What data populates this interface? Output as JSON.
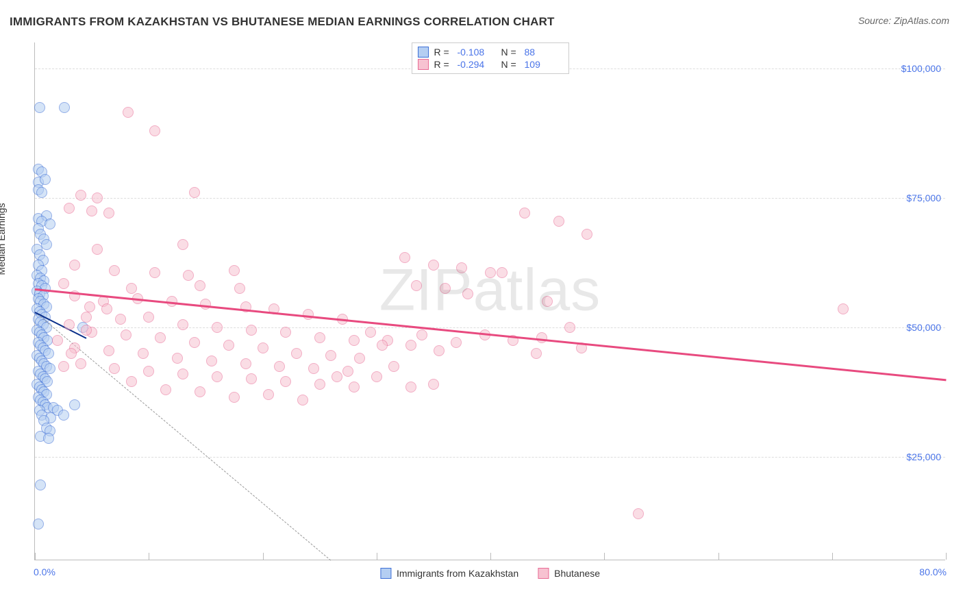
{
  "title": "IMMIGRANTS FROM KAZAKHSTAN VS BHUTANESE MEDIAN EARNINGS CORRELATION CHART",
  "source": "Source: ZipAtlas.com",
  "watermark": "ZIPatlas",
  "yaxis_label": "Median Earnings",
  "chart": {
    "type": "scatter",
    "xlim": [
      0,
      80
    ],
    "ylim": [
      5000,
      105000
    ],
    "x_format": "percent",
    "y_format": "currency",
    "y_ticks": [
      25000,
      50000,
      75000,
      100000
    ],
    "y_tick_labels": [
      "$25,000",
      "$50,000",
      "$75,000",
      "$100,000"
    ],
    "x_tick_positions": [
      0,
      10,
      20,
      30,
      40,
      50,
      60,
      70,
      80
    ],
    "xlim_labels": [
      "0.0%",
      "80.0%"
    ],
    "background_color": "#ffffff",
    "grid_color": "#dddddd",
    "marker_radius": 8,
    "marker_stroke_width": 1.5,
    "series": [
      {
        "id": "kazakhstan",
        "label": "Immigrants from Kazakhstan",
        "fill": "#b4cef2",
        "fill_opacity": 0.55,
        "stroke": "#3d6fd6",
        "r": -0.108,
        "n": 88,
        "regression": {
          "x1": 0,
          "y1": 53000,
          "x2": 4.5,
          "y2": 48000,
          "color": "#0a2f8a",
          "width": 2
        },
        "extrapolation": {
          "x1": 0,
          "y1": 53000,
          "x2": 26,
          "y2": 5000,
          "color": "#999999"
        },
        "points": [
          [
            0.4,
            92500
          ],
          [
            2.6,
            92500
          ],
          [
            0.3,
            80500
          ],
          [
            0.6,
            80000
          ],
          [
            0.3,
            78000
          ],
          [
            0.9,
            78500
          ],
          [
            0.3,
            76500
          ],
          [
            0.6,
            76000
          ],
          [
            0.3,
            71000
          ],
          [
            1.0,
            71500
          ],
          [
            0.6,
            70500
          ],
          [
            1.3,
            70000
          ],
          [
            0.3,
            69000
          ],
          [
            0.5,
            68000
          ],
          [
            0.8,
            67000
          ],
          [
            1.0,
            66000
          ],
          [
            0.2,
            65000
          ],
          [
            0.4,
            64000
          ],
          [
            0.7,
            63000
          ],
          [
            0.3,
            62000
          ],
          [
            0.6,
            61000
          ],
          [
            0.2,
            60000
          ],
          [
            0.5,
            59500
          ],
          [
            0.8,
            59000
          ],
          [
            0.3,
            58500
          ],
          [
            0.6,
            58000
          ],
          [
            0.9,
            57500
          ],
          [
            0.2,
            57000
          ],
          [
            0.4,
            56500
          ],
          [
            0.7,
            56000
          ],
          [
            0.3,
            55500
          ],
          [
            0.5,
            55000
          ],
          [
            0.8,
            54500
          ],
          [
            1.0,
            54000
          ],
          [
            0.2,
            53500
          ],
          [
            0.4,
            53000
          ],
          [
            0.6,
            52500
          ],
          [
            0.9,
            52000
          ],
          [
            0.3,
            51500
          ],
          [
            0.5,
            51000
          ],
          [
            0.7,
            50500
          ],
          [
            1.0,
            50000
          ],
          [
            0.2,
            49500
          ],
          [
            0.4,
            49000
          ],
          [
            0.6,
            48500
          ],
          [
            0.8,
            48000
          ],
          [
            1.1,
            47500
          ],
          [
            0.3,
            47000
          ],
          [
            0.5,
            46500
          ],
          [
            0.7,
            46000
          ],
          [
            0.9,
            45500
          ],
          [
            1.2,
            45000
          ],
          [
            0.2,
            44500
          ],
          [
            0.4,
            44000
          ],
          [
            0.6,
            43500
          ],
          [
            0.8,
            43000
          ],
          [
            1.0,
            42500
          ],
          [
            1.3,
            42000
          ],
          [
            0.3,
            41500
          ],
          [
            0.5,
            41000
          ],
          [
            0.7,
            40500
          ],
          [
            0.9,
            40000
          ],
          [
            1.1,
            39500
          ],
          [
            0.2,
            39000
          ],
          [
            0.4,
            38500
          ],
          [
            0.6,
            38000
          ],
          [
            0.8,
            37500
          ],
          [
            1.0,
            37000
          ],
          [
            0.3,
            36500
          ],
          [
            0.5,
            36000
          ],
          [
            0.7,
            35500
          ],
          [
            0.9,
            35000
          ],
          [
            1.1,
            34500
          ],
          [
            0.4,
            34000
          ],
          [
            1.6,
            34500
          ],
          [
            2.0,
            34000
          ],
          [
            0.6,
            33000
          ],
          [
            1.4,
            32500
          ],
          [
            0.8,
            32000
          ],
          [
            1.0,
            30500
          ],
          [
            1.3,
            30000
          ],
          [
            0.5,
            29000
          ],
          [
            1.2,
            28500
          ],
          [
            2.5,
            33000
          ],
          [
            3.5,
            35000
          ],
          [
            0.5,
            19500
          ],
          [
            0.3,
            12000
          ],
          [
            4.2,
            50000
          ]
        ]
      },
      {
        "id": "bhutanese",
        "label": "Bhutanese",
        "fill": "#f7c2d1",
        "fill_opacity": 0.55,
        "stroke": "#e86b95",
        "r": -0.294,
        "n": 109,
        "regression": {
          "x1": 0,
          "y1": 57500,
          "x2": 80,
          "y2": 40000,
          "color": "#e84a7f",
          "width": 2.5
        },
        "points": [
          [
            8.2,
            91500
          ],
          [
            10.5,
            88000
          ],
          [
            14.0,
            76000
          ],
          [
            4.0,
            75500
          ],
          [
            5.5,
            75000
          ],
          [
            3.0,
            73000
          ],
          [
            5.0,
            72500
          ],
          [
            6.5,
            72000
          ],
          [
            13.0,
            66000
          ],
          [
            5.5,
            65000
          ],
          [
            3.5,
            62000
          ],
          [
            7.0,
            61000
          ],
          [
            10.5,
            60500
          ],
          [
            13.5,
            60000
          ],
          [
            17.5,
            61000
          ],
          [
            8.5,
            57500
          ],
          [
            14.5,
            58000
          ],
          [
            18.0,
            57500
          ],
          [
            32.5,
            63500
          ],
          [
            35.0,
            62000
          ],
          [
            37.5,
            61500
          ],
          [
            40.0,
            60500
          ],
          [
            33.5,
            58000
          ],
          [
            36.0,
            57500
          ],
          [
            38.0,
            56500
          ],
          [
            41.0,
            60500
          ],
          [
            43.0,
            72000
          ],
          [
            46.0,
            70500
          ],
          [
            48.5,
            68000
          ],
          [
            45.0,
            55000
          ],
          [
            6.0,
            55000
          ],
          [
            9.0,
            55500
          ],
          [
            12.0,
            55000
          ],
          [
            15.0,
            54500
          ],
          [
            18.5,
            54000
          ],
          [
            21.0,
            53500
          ],
          [
            24.0,
            52500
          ],
          [
            27.0,
            51500
          ],
          [
            29.5,
            49000
          ],
          [
            31.0,
            47500
          ],
          [
            33.0,
            46500
          ],
          [
            35.5,
            45500
          ],
          [
            4.5,
            52000
          ],
          [
            7.5,
            51500
          ],
          [
            10.0,
            52000
          ],
          [
            13.0,
            50500
          ],
          [
            16.0,
            50000
          ],
          [
            19.0,
            49500
          ],
          [
            22.0,
            49000
          ],
          [
            25.0,
            48000
          ],
          [
            28.0,
            47500
          ],
          [
            30.5,
            46500
          ],
          [
            34.0,
            48500
          ],
          [
            37.0,
            47000
          ],
          [
            39.5,
            48500
          ],
          [
            42.0,
            47500
          ],
          [
            44.5,
            48000
          ],
          [
            47.0,
            50000
          ],
          [
            44.0,
            45000
          ],
          [
            48.0,
            46000
          ],
          [
            5.0,
            49000
          ],
          [
            8.0,
            48500
          ],
          [
            11.0,
            48000
          ],
          [
            14.0,
            47000
          ],
          [
            17.0,
            46500
          ],
          [
            20.0,
            46000
          ],
          [
            23.0,
            45000
          ],
          [
            26.0,
            44500
          ],
          [
            28.5,
            44000
          ],
          [
            31.5,
            42500
          ],
          [
            3.5,
            46000
          ],
          [
            6.5,
            45500
          ],
          [
            9.5,
            45000
          ],
          [
            12.5,
            44000
          ],
          [
            15.5,
            43500
          ],
          [
            18.5,
            43000
          ],
          [
            21.5,
            42500
          ],
          [
            24.5,
            42000
          ],
          [
            27.5,
            41500
          ],
          [
            30.0,
            40500
          ],
          [
            33.0,
            38500
          ],
          [
            35.0,
            39000
          ],
          [
            4.0,
            43000
          ],
          [
            7.0,
            42000
          ],
          [
            10.0,
            41500
          ],
          [
            13.0,
            41000
          ],
          [
            16.0,
            40500
          ],
          [
            19.0,
            40000
          ],
          [
            22.0,
            39500
          ],
          [
            25.0,
            39000
          ],
          [
            28.0,
            38500
          ],
          [
            8.5,
            39500
          ],
          [
            11.5,
            38000
          ],
          [
            14.5,
            37500
          ],
          [
            17.5,
            36500
          ],
          [
            20.5,
            37000
          ],
          [
            23.5,
            36000
          ],
          [
            26.5,
            40500
          ],
          [
            2.5,
            58500
          ],
          [
            3.5,
            56000
          ],
          [
            4.8,
            54000
          ],
          [
            6.3,
            53500
          ],
          [
            3.0,
            50500
          ],
          [
            4.5,
            49500
          ],
          [
            2.0,
            47500
          ],
          [
            3.2,
            45000
          ],
          [
            2.5,
            42500
          ],
          [
            71.0,
            53500
          ],
          [
            53.0,
            14000
          ]
        ]
      }
    ]
  },
  "legend_top": [
    {
      "swatch_fill": "#b4cef2",
      "swatch_stroke": "#3d6fd6",
      "r_label": "R =",
      "r_val": "-0.108",
      "n_label": "N =",
      "n_val": "88"
    },
    {
      "swatch_fill": "#f7c2d1",
      "swatch_stroke": "#e86b95",
      "r_label": "R =",
      "r_val": "-0.294",
      "n_label": "N =",
      "n_val": "109"
    }
  ],
  "legend_bottom": [
    {
      "swatch_fill": "#b4cef2",
      "swatch_stroke": "#3d6fd6",
      "label": "Immigrants from Kazakhstan"
    },
    {
      "swatch_fill": "#f7c2d1",
      "swatch_stroke": "#e86b95",
      "label": "Bhutanese"
    }
  ]
}
